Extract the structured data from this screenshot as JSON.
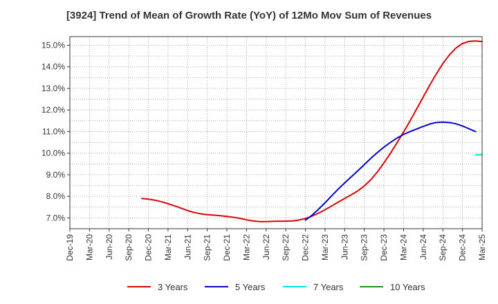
{
  "chart_data": {
    "type": "line",
    "title": "[3924]  Trend of Mean of Growth Rate (YoY) of 12Mo Mov Sum of Revenues",
    "xlabel": "",
    "ylabel": "",
    "ylim": [
      6.5,
      15.4
    ],
    "y_ticks": [
      7.0,
      8.0,
      9.0,
      10.0,
      11.0,
      12.0,
      13.0,
      14.0,
      15.0
    ],
    "y_tick_labels": [
      "7.0%",
      "8.0%",
      "9.0%",
      "10.0%",
      "11.0%",
      "12.0%",
      "13.0%",
      "14.0%",
      "15.0%"
    ],
    "x_ticks": [
      "Dec-19",
      "Mar-20",
      "Jun-20",
      "Sep-20",
      "Dec-20",
      "Mar-21",
      "Jun-21",
      "Sep-21",
      "Dec-21",
      "Mar-22",
      "Jun-22",
      "Sep-22",
      "Dec-22",
      "Mar-23",
      "Jun-23",
      "Sep-23",
      "Dec-23",
      "Mar-24",
      "Jun-24",
      "Sep-24",
      "Dec-24",
      "Mar-25"
    ],
    "grid": true,
    "legend_position": "bottom",
    "series": [
      {
        "name": "3 Years",
        "color": "#dd0000",
        "start_index": 11,
        "values": [
          7.9,
          7.87,
          7.82,
          7.75,
          7.66,
          7.56,
          7.45,
          7.34,
          7.25,
          7.19,
          7.15,
          7.13,
          7.1,
          7.07,
          7.03,
          6.98,
          6.91,
          6.86,
          6.83,
          6.83,
          6.84,
          6.85,
          6.85,
          6.86,
          6.9,
          6.97,
          7.08,
          7.22,
          7.38,
          7.55,
          7.73,
          7.9,
          8.07,
          8.25,
          8.48,
          8.77,
          9.13,
          9.55,
          10.0,
          10.48,
          10.98,
          11.5,
          12.05,
          12.6,
          13.15,
          13.67,
          14.15,
          14.55,
          14.87,
          15.08,
          15.18,
          15.2,
          15.17
        ]
      },
      {
        "name": "5 Years",
        "color": "#0000cc",
        "start_index": 36,
        "values": [
          6.9,
          7.12,
          7.4,
          7.7,
          8.02,
          8.33,
          8.62,
          8.9,
          9.18,
          9.47,
          9.76,
          10.03,
          10.28,
          10.5,
          10.7,
          10.87,
          11.0,
          11.12,
          11.24,
          11.35,
          11.42,
          11.44,
          11.42,
          11.36,
          11.26,
          11.13,
          11.0
        ]
      },
      {
        "name": "7 Years",
        "color": "#00e5e5",
        "start_index": 62,
        "values": [
          9.92,
          9.93
        ]
      },
      {
        "name": "10 Years",
        "color": "#228b22",
        "start_index": 0,
        "values": []
      }
    ]
  }
}
